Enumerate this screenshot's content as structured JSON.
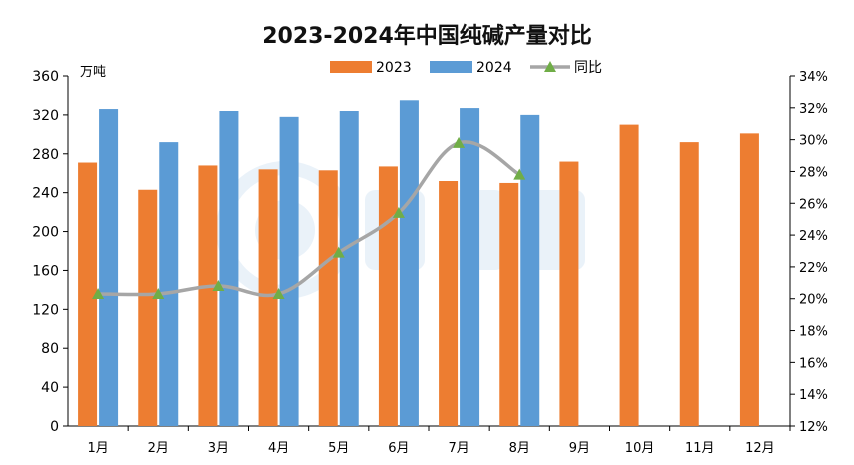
{
  "chart_data": {
    "type": "bar",
    "title": "2023-2024年中国纯碱产量对比",
    "ylabel_left": "万吨",
    "ylabel_right": "",
    "categories": [
      "1月",
      "2月",
      "3月",
      "4月",
      "5月",
      "6月",
      "7月",
      "8月",
      "9月",
      "10月",
      "11月",
      "12月"
    ],
    "series": [
      {
        "name": "2023",
        "kind": "bar",
        "color": "#ED7D31",
        "values": [
          271,
          243,
          268,
          264,
          263,
          267,
          252,
          250,
          272,
          310,
          292,
          301
        ]
      },
      {
        "name": "2024",
        "kind": "bar",
        "color": "#5B9BD5",
        "values": [
          326,
          292,
          324,
          318,
          324,
          335,
          327,
          320,
          null,
          null,
          null,
          null
        ]
      },
      {
        "name": "同比",
        "kind": "line",
        "axis": "right",
        "color": "#A6A6A6",
        "marker_color": "#70AD47",
        "values": [
          20.3,
          20.3,
          20.8,
          20.3,
          22.9,
          25.4,
          29.8,
          27.8,
          null,
          null,
          null,
          null
        ]
      }
    ],
    "left_axis": {
      "min": 0,
      "max": 360,
      "step": 40,
      "ticks": [
        "0",
        "40",
        "80",
        "120",
        "160",
        "200",
        "240",
        "280",
        "320",
        "360"
      ]
    },
    "right_axis": {
      "min": 12,
      "max": 34,
      "step": 2,
      "ticks": [
        "12%",
        "14%",
        "16%",
        "18%",
        "20%",
        "22%",
        "24%",
        "26%",
        "28%",
        "30%",
        "32%",
        "34%"
      ]
    },
    "legend_position": "top-center",
    "grid": false
  }
}
